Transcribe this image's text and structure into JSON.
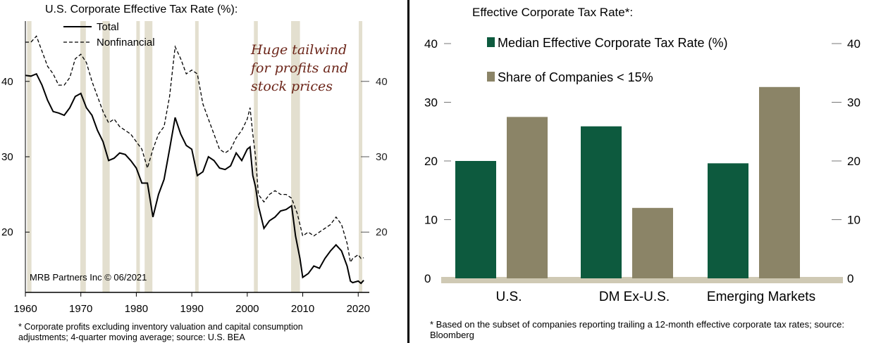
{
  "left": {
    "title": "U.S. Corporate Effective Tax Rate (%):",
    "footnote": "* Corporate profits excluding inventory valuation and capital consumption adjustments; 4-quarter moving average; source: U.S. BEA",
    "annotation": [
      "Huge tailwind",
      "for profits and",
      "stock prices"
    ],
    "credit": "MRB Partners Inc © 06/2021"
  },
  "right": {
    "title": "Effective Corporate Tax Rate*:",
    "footnote": "* Based on the subset of companies reporting trailing a 12-month effective corporate tax rates; source: Bloomberg"
  },
  "colors": {
    "recession_shading": "#e3dfcf",
    "bar_median": "#0d5a3e",
    "bar_share": "#8b8467",
    "baseline": "#cfc9b4"
  },
  "chart_data": [
    {
      "type": "line",
      "title": "U.S. Corporate Effective Tax Rate (%):",
      "xlabel": "",
      "ylabel": "",
      "xlim": [
        1960,
        2022
      ],
      "ylim": [
        12,
        48
      ],
      "xticks": [
        1960,
        1970,
        1980,
        1990,
        2000,
        2010,
        2020
      ],
      "yticks": [
        20,
        30,
        40
      ],
      "grid": false,
      "legend": "top-left",
      "recessions": [
        [
          1960.3,
          1961.1
        ],
        [
          1969.9,
          1970.9
        ],
        [
          1973.9,
          1975.2
        ],
        [
          1980.0,
          1980.6
        ],
        [
          1981.5,
          1982.9
        ],
        [
          1990.6,
          1991.2
        ],
        [
          2001.2,
          2001.9
        ],
        [
          2007.9,
          2009.5
        ],
        [
          2020.1,
          2020.5
        ]
      ],
      "series": [
        {
          "name": "Total",
          "style": "solid",
          "points": [
            [
              1960,
              40.8
            ],
            [
              1961,
              40.7
            ],
            [
              1962,
              41.0
            ],
            [
              1963,
              39.5
            ],
            [
              1964,
              37.5
            ],
            [
              1965,
              36.0
            ],
            [
              1966,
              35.8
            ],
            [
              1967,
              35.5
            ],
            [
              1968,
              36.5
            ],
            [
              1969,
              38.0
            ],
            [
              1970,
              38.4
            ],
            [
              1971,
              36.5
            ],
            [
              1972,
              35.5
            ],
            [
              1973,
              33.5
            ],
            [
              1974,
              32.0
            ],
            [
              1975,
              29.5
            ],
            [
              1976,
              29.8
            ],
            [
              1977,
              30.5
            ],
            [
              1978,
              30.3
            ],
            [
              1979,
              29.5
            ],
            [
              1980,
              28.5
            ],
            [
              1981,
              26.5
            ],
            [
              1982,
              26.5
            ],
            [
              1983,
              22.0
            ],
            [
              1984,
              25.0
            ],
            [
              1985,
              27.0
            ],
            [
              1986,
              31.0
            ],
            [
              1987,
              35.2
            ],
            [
              1988,
              33.0
            ],
            [
              1989,
              31.5
            ],
            [
              1990,
              31.0
            ],
            [
              1991,
              27.5
            ],
            [
              1992,
              28.0
            ],
            [
              1993,
              30.0
            ],
            [
              1994,
              29.5
            ],
            [
              1995,
              28.5
            ],
            [
              1996,
              28.3
            ],
            [
              1997,
              28.8
            ],
            [
              1998,
              30.5
            ],
            [
              1999,
              29.5
            ],
            [
              2000,
              31.0
            ],
            [
              2000.5,
              31.3
            ],
            [
              2001,
              27.5
            ],
            [
              2001.5,
              26.0
            ],
            [
              2002,
              23.5
            ],
            [
              2003,
              20.5
            ],
            [
              2004,
              21.5
            ],
            [
              2005,
              22.0
            ],
            [
              2006,
              22.8
            ],
            [
              2007,
              23.0
            ],
            [
              2008,
              23.5
            ],
            [
              2008.7,
              19.5
            ],
            [
              2009.5,
              16.5
            ],
            [
              2010,
              14.0
            ],
            [
              2011,
              14.5
            ],
            [
              2012,
              15.5
            ],
            [
              2013,
              15.2
            ],
            [
              2014,
              16.5
            ],
            [
              2015,
              17.5
            ],
            [
              2016,
              18.3
            ],
            [
              2017,
              17.5
            ],
            [
              2018,
              15.5
            ],
            [
              2018.6,
              13.5
            ],
            [
              2019,
              13.3
            ],
            [
              2020,
              13.5
            ],
            [
              2020.5,
              13.2
            ],
            [
              2021,
              13.6
            ]
          ]
        },
        {
          "name": "Nonfinancial",
          "style": "dashed",
          "points": [
            [
              1960,
              45.2
            ],
            [
              1961,
              45.2
            ],
            [
              1962,
              46.0
            ],
            [
              1963,
              44.0
            ],
            [
              1964,
              42.0
            ],
            [
              1965,
              41.0
            ],
            [
              1966,
              39.5
            ],
            [
              1967,
              39.5
            ],
            [
              1968,
              40.5
            ],
            [
              1969,
              43.0
            ],
            [
              1970,
              43.6
            ],
            [
              1971,
              42.5
            ],
            [
              1972,
              40.0
            ],
            [
              1973,
              38.0
            ],
            [
              1974,
              36.0
            ],
            [
              1975,
              34.5
            ],
            [
              1976,
              35.0
            ],
            [
              1977,
              34.0
            ],
            [
              1978,
              33.5
            ],
            [
              1979,
              33.0
            ],
            [
              1980,
              32.0
            ],
            [
              1981,
              31.0
            ],
            [
              1982,
              28.5
            ],
            [
              1983,
              31.0
            ],
            [
              1984,
              33.0
            ],
            [
              1985,
              34.0
            ],
            [
              1986,
              38.0
            ],
            [
              1987,
              44.6
            ],
            [
              1988,
              43.0
            ],
            [
              1989,
              41.0
            ],
            [
              1990,
              41.5
            ],
            [
              1991,
              41.0
            ],
            [
              1992,
              37.0
            ],
            [
              1993,
              35.0
            ],
            [
              1994,
              33.0
            ],
            [
              1995,
              31.0
            ],
            [
              1996,
              30.5
            ],
            [
              1997,
              31.0
            ],
            [
              1998,
              32.5
            ],
            [
              1999,
              33.5
            ],
            [
              2000,
              35.0
            ],
            [
              2000.5,
              36.5
            ],
            [
              2001,
              33.0
            ],
            [
              2001.5,
              30.0
            ],
            [
              2002,
              25.0
            ],
            [
              2003,
              24.0
            ],
            [
              2004,
              25.0
            ],
            [
              2005,
              25.5
            ],
            [
              2006,
              25.0
            ],
            [
              2007,
              25.0
            ],
            [
              2008,
              24.5
            ],
            [
              2009,
              22.5
            ],
            [
              2010,
              19.5
            ],
            [
              2011,
              20.0
            ],
            [
              2012,
              19.5
            ],
            [
              2013,
              20.0
            ],
            [
              2014,
              20.5
            ],
            [
              2015,
              21.0
            ],
            [
              2016,
              22.0
            ],
            [
              2017,
              21.0
            ],
            [
              2018,
              18.5
            ],
            [
              2018.6,
              16.0
            ],
            [
              2019,
              16.5
            ],
            [
              2020,
              17.0
            ],
            [
              2020.5,
              16.5
            ],
            [
              2021,
              16.6
            ]
          ]
        }
      ]
    },
    {
      "type": "bar",
      "title": "Effective Corporate Tax Rate*:",
      "categories": [
        "U.S.",
        "DM Ex-U.S.",
        "Emerging Markets"
      ],
      "ylim": [
        0,
        40
      ],
      "yticks": [
        0,
        10,
        20,
        30,
        40
      ],
      "grid": false,
      "legend": "top-left",
      "series": [
        {
          "name": "Median Effective Corporate Tax Rate (%)",
          "values": [
            20,
            25.9,
            19.6
          ]
        },
        {
          "name": "Share of Companies < 15%",
          "values": [
            27.5,
            12,
            32.6
          ]
        }
      ]
    }
  ]
}
